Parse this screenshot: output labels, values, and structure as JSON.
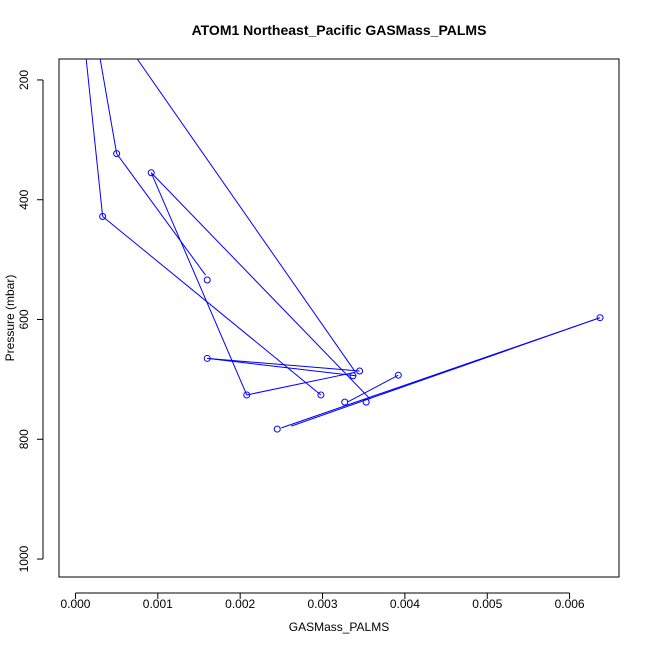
{
  "chart_data": {
    "type": "scatter",
    "title": "ATOM1 Northeast_Pacific GASMass_PALMS",
    "xlabel": "GASMass_PALMS",
    "ylabel": "Pressure (mbar)",
    "xlim": [
      -0.0002,
      0.0066
    ],
    "ylim": [
      1030,
      165
    ],
    "y_reversed": true,
    "x_ticks": [
      0.0,
      0.001,
      0.002,
      0.003,
      0.004,
      0.005,
      0.006
    ],
    "x_tick_labels": [
      "0.000",
      "0.001",
      "0.002",
      "0.003",
      "0.004",
      "0.005",
      "0.006"
    ],
    "y_ticks": [
      200,
      400,
      600,
      800,
      1000
    ],
    "y_tick_labels": [
      "200",
      "400",
      "600",
      "800",
      "1000"
    ],
    "grid": false,
    "series_color": "#0000ff",
    "segments": [
      [
        [
          0.00013,
          165
        ],
        [
          0.00033,
          428
        ]
      ],
      [
        [
          0.00033,
          428
        ],
        [
          0.00298,
          726
        ]
      ],
      [
        [
          0.0003,
          165
        ],
        [
          0.0005,
          323
        ]
      ],
      [
        [
          0.0005,
          323
        ],
        [
          0.00158,
          526
        ]
      ],
      [
        [
          0.00075,
          165
        ],
        [
          0.0034,
          688
        ]
      ],
      [
        [
          0.00092,
          355
        ],
        [
          0.00208,
          726
        ]
      ],
      [
        [
          0.00092,
          355
        ],
        [
          0.00358,
          733
        ]
      ],
      [
        [
          0.00208,
          726
        ],
        [
          0.0034,
          688
        ]
      ],
      [
        [
          0.0016,
          665
        ],
        [
          0.00345,
          686
        ]
      ],
      [
        [
          0.0016,
          665
        ],
        [
          0.0034,
          694
        ]
      ],
      [
        [
          0.00392,
          693
        ],
        [
          0.0033,
          738
        ]
      ],
      [
        [
          0.00637,
          597
        ],
        [
          0.0025,
          781
        ]
      ],
      [
        [
          0.00637,
          597
        ],
        [
          0.00262,
          778
        ]
      ]
    ],
    "points": [
      {
        "x": 0.00033,
        "y": 428
      },
      {
        "x": 0.0005,
        "y": 323
      },
      {
        "x": 0.00092,
        "y": 355
      },
      {
        "x": 0.0016,
        "y": 534
      },
      {
        "x": 0.0016,
        "y": 665
      },
      {
        "x": 0.00208,
        "y": 726
      },
      {
        "x": 0.00298,
        "y": 726
      },
      {
        "x": 0.00327,
        "y": 738
      },
      {
        "x": 0.00337,
        "y": 694
      },
      {
        "x": 0.00345,
        "y": 686
      },
      {
        "x": 0.00353,
        "y": 738
      },
      {
        "x": 0.00392,
        "y": 693
      },
      {
        "x": 0.00245,
        "y": 783
      },
      {
        "x": 0.00637,
        "y": 597
      }
    ]
  }
}
